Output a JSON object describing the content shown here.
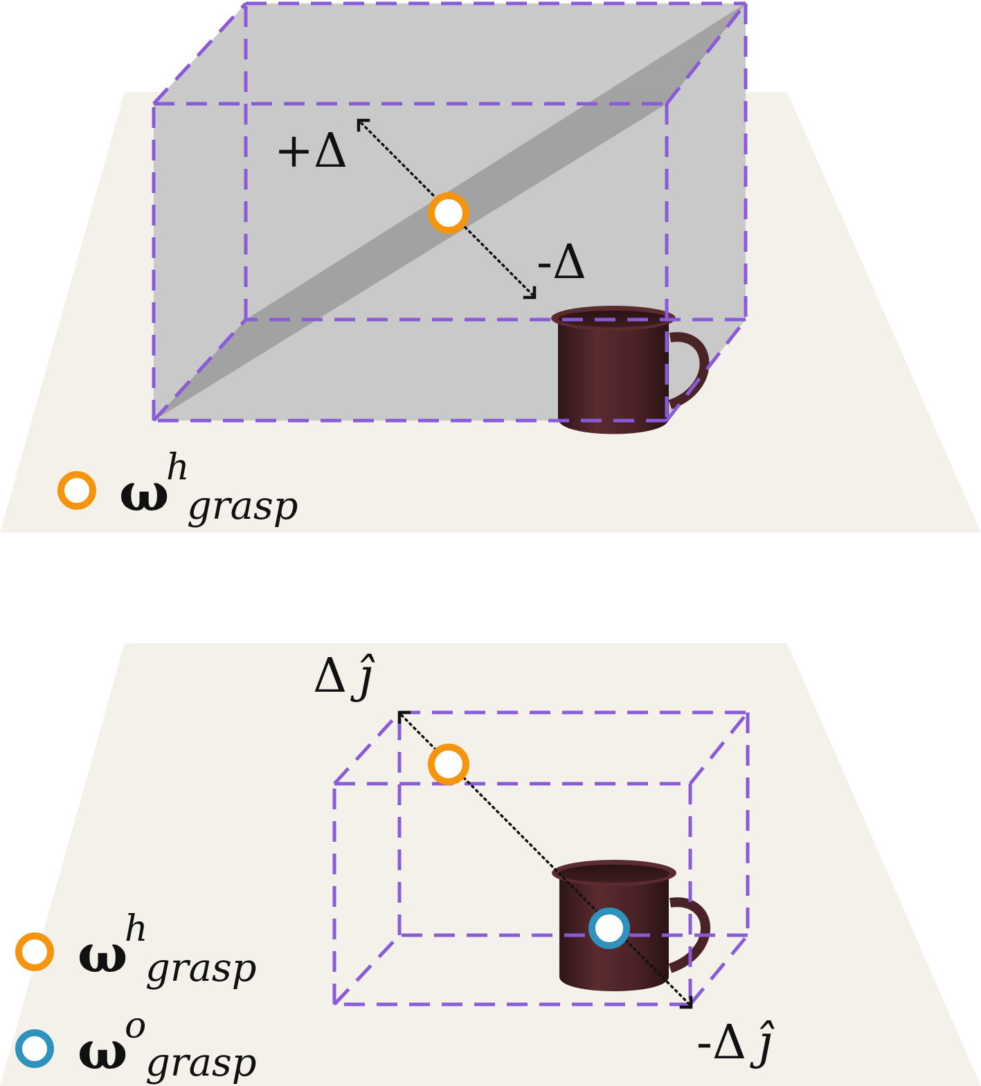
{
  "colors": {
    "table": "#f4f0ea",
    "workspace_box": "#8a5bd6",
    "human_grasp_marker": "#f5950f",
    "object_grasp_marker": "#2d93bd",
    "mug": "#4a2326",
    "shaded_volume": "#b9b9b9"
  },
  "top_panel": {
    "plus_delta_label": "+Δ",
    "minus_delta_label": "-Δ",
    "legend": {
      "human": {
        "symbol": "ω",
        "superscript": "h",
        "subscript": "grasp",
        "icon": "orange-ring-icon"
      }
    }
  },
  "bottom_panel": {
    "plus_delta_label": {
      "delta": "Δ",
      "unit": "ĵ"
    },
    "minus_delta_label": {
      "delta": "-Δ",
      "unit": "ĵ"
    },
    "legend": {
      "human": {
        "symbol": "ω",
        "superscript": "h",
        "subscript": "grasp",
        "icon": "orange-ring-icon"
      },
      "object": {
        "symbol": "ω",
        "superscript": "o",
        "subscript": "grasp",
        "icon": "blue-ring-icon"
      }
    }
  }
}
